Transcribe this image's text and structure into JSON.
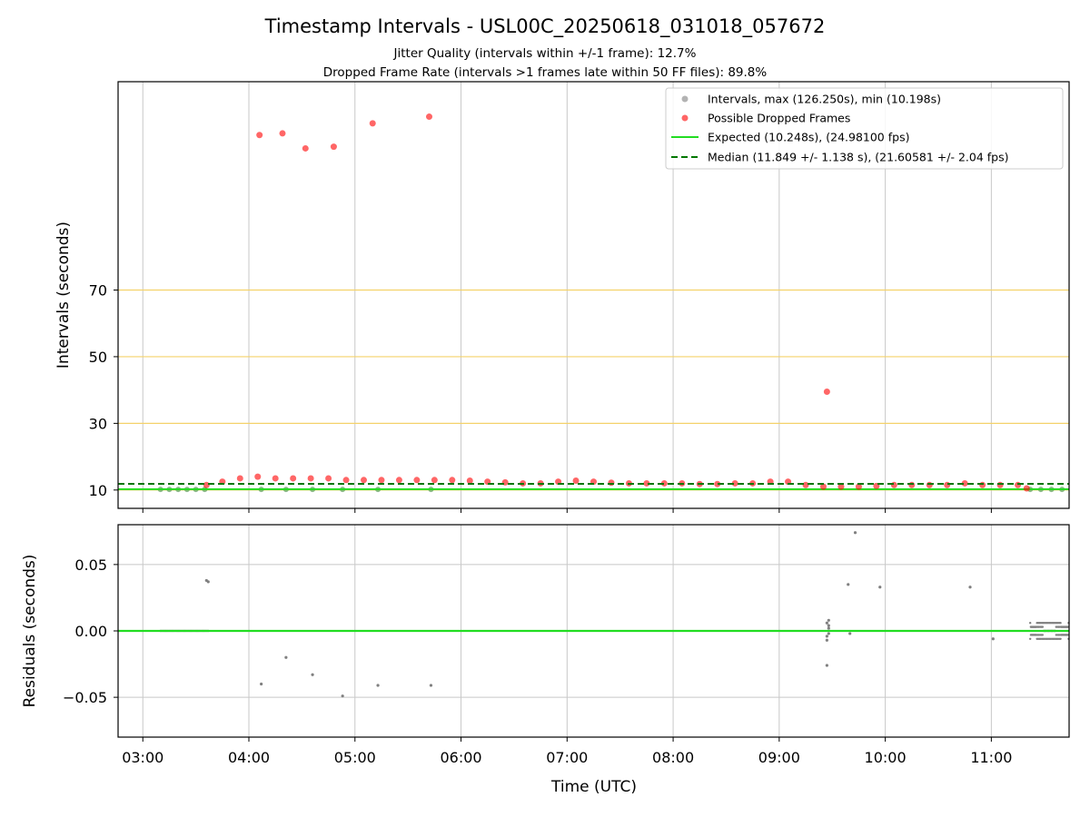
{
  "figure": {
    "title": "Timestamp Intervals - USL00C_20250618_031018_057672",
    "subtitle_1": "Jitter Quality (intervals within +/-1 frame): 12.7%",
    "subtitle_2": "Dropped Frame Rate (intervals >1 frames late within 50 FF files): 89.8%",
    "xlabel": "Time (UTC)"
  },
  "colors": {
    "intervals": "#808080",
    "dropped": "#ff0000",
    "expected": "#22dd22",
    "median": "#007700",
    "threshold_lines": "#f4d26a",
    "grid": "#c8c8c8"
  },
  "chart_data": [
    {
      "type": "scatter",
      "name": "intervals",
      "ylabel": "Intervals (seconds)",
      "xlim": [
        "02:46",
        "11:44"
      ],
      "ylim": [
        4.5,
        132.5
      ],
      "x_ticks": [
        "03:00",
        "04:00",
        "05:00",
        "06:00",
        "07:00",
        "08:00",
        "09:00",
        "10:00",
        "11:00"
      ],
      "y_ticks": [
        10,
        30,
        50,
        70
      ],
      "threshold_lines": [
        10,
        30,
        50,
        70
      ],
      "legend_position": "top-right",
      "legend": [
        "Intervals, max (126.250s), min (10.198s)",
        "Possible Dropped Frames",
        "Expected (10.248s), (24.98100 fps)",
        "Median (11.849 +/- 1.138 s), (21.60581 +/- 2.04 fps)"
      ],
      "expected_y": 10.248,
      "median_y": 11.849,
      "series": [
        {
          "name": "Intervals",
          "points": [
            {
              "x": "03:10",
              "y": 10.2
            },
            {
              "x": "03:15",
              "y": 10.2
            },
            {
              "x": "03:20",
              "y": 10.2
            },
            {
              "x": "03:25",
              "y": 10.2
            },
            {
              "x": "03:30",
              "y": 10.2
            },
            {
              "x": "03:35",
              "y": 10.2
            },
            {
              "x": "04:07",
              "y": 10.2
            },
            {
              "x": "04:21",
              "y": 10.2
            },
            {
              "x": "04:36",
              "y": 10.2
            },
            {
              "x": "04:53",
              "y": 10.2
            },
            {
              "x": "05:13",
              "y": 10.2
            },
            {
              "x": "05:43",
              "y": 10.2
            },
            {
              "x": "11:22",
              "y": 10.2
            },
            {
              "x": "11:28",
              "y": 10.2
            },
            {
              "x": "11:34",
              "y": 10.2
            },
            {
              "x": "11:40",
              "y": 10.2
            }
          ]
        },
        {
          "name": "Possible Dropped Frames",
          "points": [
            {
              "x": "03:36",
              "y": 11.5
            },
            {
              "x": "03:45",
              "y": 12.5
            },
            {
              "x": "03:55",
              "y": 13.5
            },
            {
              "x": "04:05",
              "y": 14
            },
            {
              "x": "04:15",
              "y": 13.5
            },
            {
              "x": "04:25",
              "y": 13.5
            },
            {
              "x": "04:35",
              "y": 13.5
            },
            {
              "x": "04:45",
              "y": 13.5
            },
            {
              "x": "04:55",
              "y": 13
            },
            {
              "x": "05:05",
              "y": 13
            },
            {
              "x": "05:15",
              "y": 13
            },
            {
              "x": "05:25",
              "y": 13
            },
            {
              "x": "05:35",
              "y": 13
            },
            {
              "x": "05:45",
              "y": 13
            },
            {
              "x": "05:55",
              "y": 13
            },
            {
              "x": "06:05",
              "y": 12.8
            },
            {
              "x": "06:15",
              "y": 12.5
            },
            {
              "x": "06:25",
              "y": 12.3
            },
            {
              "x": "06:35",
              "y": 12
            },
            {
              "x": "06:45",
              "y": 12
            },
            {
              "x": "06:55",
              "y": 12.5
            },
            {
              "x": "07:05",
              "y": 12.8
            },
            {
              "x": "07:15",
              "y": 12.5
            },
            {
              "x": "07:25",
              "y": 12.2
            },
            {
              "x": "07:35",
              "y": 12
            },
            {
              "x": "07:45",
              "y": 12
            },
            {
              "x": "07:55",
              "y": 12
            },
            {
              "x": "08:05",
              "y": 12
            },
            {
              "x": "08:15",
              "y": 11.8
            },
            {
              "x": "08:25",
              "y": 11.8
            },
            {
              "x": "08:35",
              "y": 12
            },
            {
              "x": "08:45",
              "y": 12
            },
            {
              "x": "08:55",
              "y": 12.5
            },
            {
              "x": "09:05",
              "y": 12.5
            },
            {
              "x": "09:15",
              "y": 11.5
            },
            {
              "x": "09:25",
              "y": 11
            },
            {
              "x": "09:35",
              "y": 11
            },
            {
              "x": "09:45",
              "y": 11
            },
            {
              "x": "09:55",
              "y": 11.2
            },
            {
              "x": "10:05",
              "y": 11.5
            },
            {
              "x": "10:15",
              "y": 11.5
            },
            {
              "x": "10:25",
              "y": 11.5
            },
            {
              "x": "10:35",
              "y": 11.5
            },
            {
              "x": "10:45",
              "y": 12
            },
            {
              "x": "10:55",
              "y": 11.5
            },
            {
              "x": "11:05",
              "y": 11.5
            },
            {
              "x": "11:15",
              "y": 11.5
            },
            {
              "x": "11:20",
              "y": 10.5
            },
            {
              "x": "04:06",
              "y": 116.5
            },
            {
              "x": "04:19",
              "y": 117
            },
            {
              "x": "04:32",
              "y": 112.5
            },
            {
              "x": "04:48",
              "y": 113
            },
            {
              "x": "05:10",
              "y": 120
            },
            {
              "x": "05:42",
              "y": 122
            },
            {
              "x": "09:27",
              "y": 39.5
            }
          ]
        }
      ]
    },
    {
      "type": "scatter",
      "name": "residuals",
      "ylabel": "Residuals (seconds)",
      "xlim": [
        "02:46",
        "11:44"
      ],
      "ylim": [
        -0.08,
        0.08
      ],
      "x_ticks": [
        "03:00",
        "04:00",
        "05:00",
        "06:00",
        "07:00",
        "08:00",
        "09:00",
        "10:00",
        "11:00"
      ],
      "y_ticks": [
        "0.05",
        "0.00",
        "−0.05"
      ],
      "zero_line_y": 0,
      "points": [
        {
          "x": "03:36",
          "y": 0.038
        },
        {
          "x": "03:37",
          "y": 0.037
        },
        {
          "x": "04:07",
          "y": -0.04
        },
        {
          "x": "04:21",
          "y": -0.02
        },
        {
          "x": "04:36",
          "y": -0.033
        },
        {
          "x": "04:53",
          "y": -0.049
        },
        {
          "x": "05:13",
          "y": -0.041
        },
        {
          "x": "05:43",
          "y": -0.041
        },
        {
          "x": "09:27",
          "y": -0.026
        },
        {
          "x": "09:27",
          "y": -0.007
        },
        {
          "x": "09:27",
          "y": -0.004
        },
        {
          "x": "09:28",
          "y": -0.002
        },
        {
          "x": "09:28",
          "y": 0.002
        },
        {
          "x": "09:28",
          "y": 0.004
        },
        {
          "x": "09:27",
          "y": 0.006
        },
        {
          "x": "09:28",
          "y": 0.008
        },
        {
          "x": "09:39",
          "y": 0.035
        },
        {
          "x": "09:40",
          "y": -0.002
        },
        {
          "x": "09:43",
          "y": 0.074
        },
        {
          "x": "09:57",
          "y": 0.033
        },
        {
          "x": "10:48",
          "y": 0.033
        },
        {
          "x": "11:01",
          "y": -0.006
        }
      ]
    }
  ]
}
